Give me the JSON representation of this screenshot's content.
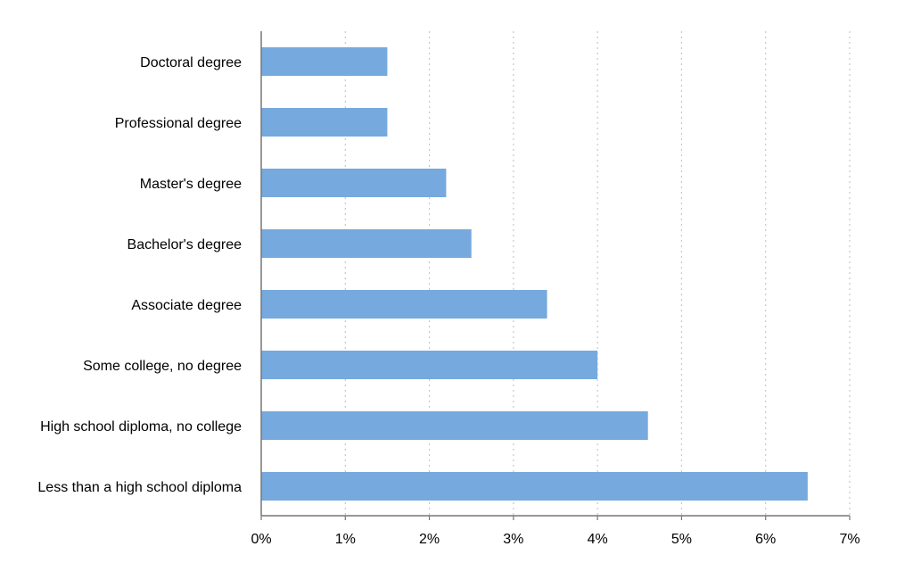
{
  "chart_data": {
    "type": "bar",
    "orientation": "horizontal",
    "categories": [
      "Doctoral degree",
      "Professional degree",
      "Master's degree",
      "Bachelor's degree",
      "Associate degree",
      "Some college, no degree",
      "High school diploma, no college",
      "Less than a high school diploma"
    ],
    "values": [
      1.5,
      1.5,
      2.2,
      2.5,
      3.4,
      4.0,
      4.6,
      6.5
    ],
    "xlim": [
      0,
      7
    ],
    "xticks": [
      "0%",
      "1%",
      "2%",
      "3%",
      "4%",
      "5%",
      "6%",
      "7%"
    ],
    "title": "",
    "xlabel": "",
    "ylabel": "",
    "grid": "vertical dotted",
    "bar_color": "#76a9dd",
    "grid_color": "#c8c8c8",
    "axis_color": "#777777"
  }
}
